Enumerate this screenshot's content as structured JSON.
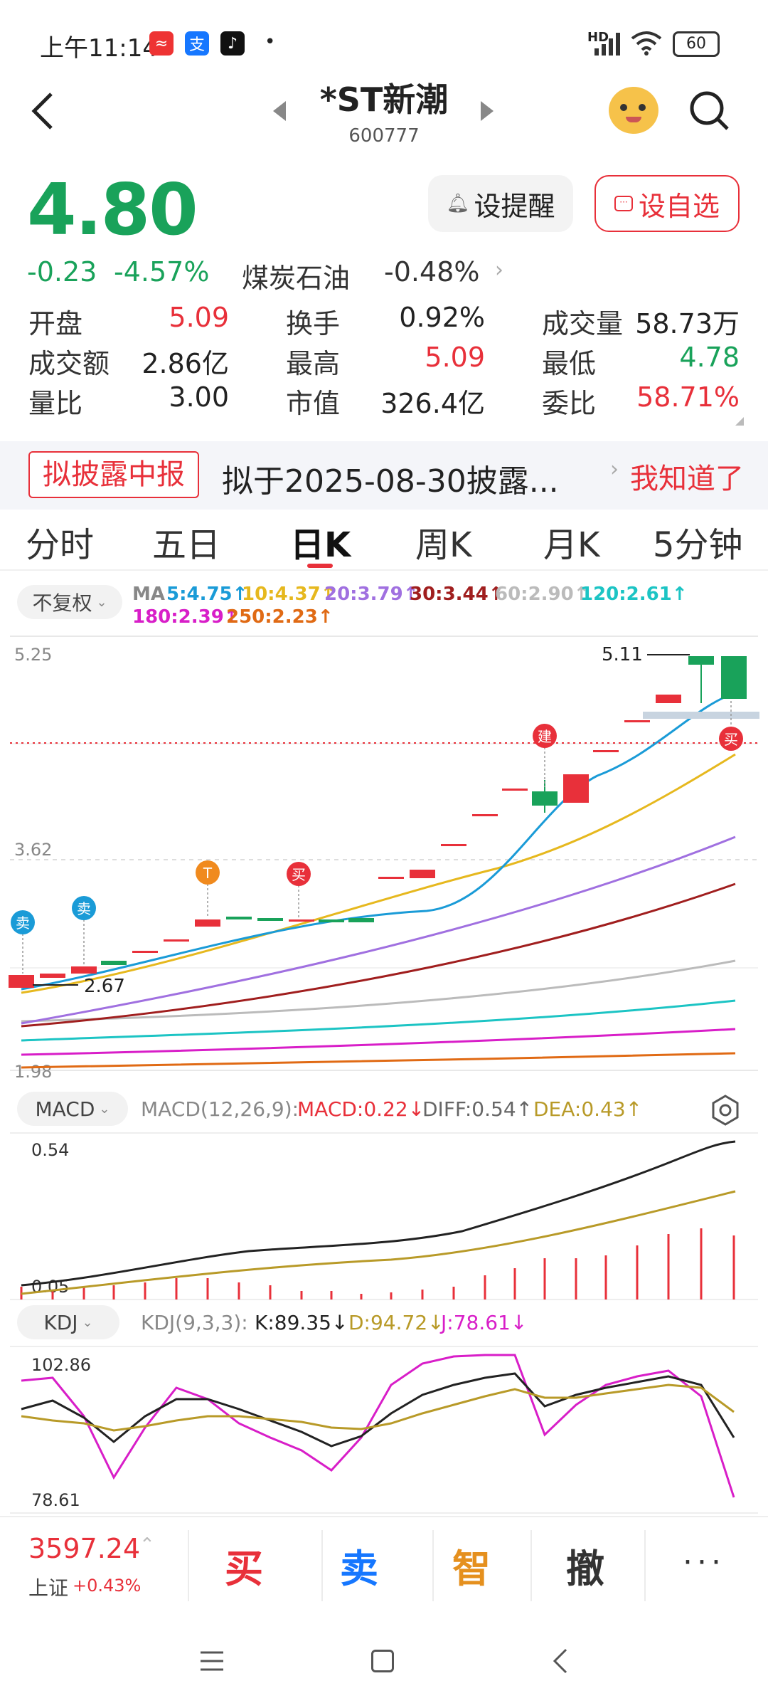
{
  "status_bar": {
    "time": "上午11:14",
    "battery": "60",
    "network": "HD"
  },
  "header": {
    "title": "*ST新潮",
    "code": "600777"
  },
  "quote": {
    "price": "4.80",
    "change": "-0.23",
    "change_pct": "-4.57%",
    "sector_name": "煤炭石油",
    "sector_change": "-0.48%",
    "alert_button": "设提醒",
    "watchlist_button": "设自选"
  },
  "stats": [
    {
      "label": "开盘",
      "value": "5.09",
      "color": "#e8303a"
    },
    {
      "label": "换手",
      "value": "0.92%",
      "color": "#222222"
    },
    {
      "label": "成交量",
      "value": "58.73万",
      "color": "#222222"
    },
    {
      "label": "成交额",
      "value": "2.86亿",
      "color": "#222222"
    },
    {
      "label": "最高",
      "value": "5.09",
      "color": "#e8303a"
    },
    {
      "label": "最低",
      "value": "4.78",
      "color": "#19a25a"
    },
    {
      "label": "量比",
      "value": "3.00",
      "color": "#222222"
    },
    {
      "label": "市值",
      "value": "326.4亿",
      "color": "#222222"
    },
    {
      "label": "委比",
      "value": "58.71%",
      "color": "#e8303a"
    }
  ],
  "banner": {
    "tag": "拟披露中报",
    "text": "拟于2025-08-30披露...",
    "action": "我知道了"
  },
  "tabs": [
    "分时",
    "五日",
    "日K",
    "周K",
    "月K",
    "5分钟"
  ],
  "active_tab_index": 2,
  "chart": {
    "adjust_select": "不复权",
    "ma_label": "MA",
    "ma_items": [
      {
        "text": "5:4.75↑",
        "color": "#1a9bd7"
      },
      {
        "text": "10:4.37↑",
        "color": "#e6b81e"
      },
      {
        "text": "20:3.79↑",
        "color": "#a070e0"
      },
      {
        "text": "30:3.44↑",
        "color": "#a01e1e"
      },
      {
        "text": "60:2.90↑",
        "color": "#bbbbbb"
      },
      {
        "text": "120:2.61↑",
        "color": "#1cc4c4"
      },
      {
        "text": "180:2.39↑",
        "color": "#d81ec8"
      },
      {
        "text": "250:2.23↑",
        "color": "#e06a14"
      }
    ],
    "y_top": "5.25",
    "y_mid": "3.62",
    "y_bottom": "1.98",
    "high_label": "5.11",
    "low_label": "2.67",
    "markers": {
      "sell1": "卖",
      "sell2": "卖",
      "t": "T",
      "buy1": "买",
      "build": "建",
      "buy2": "买"
    }
  },
  "macd": {
    "select": "MACD",
    "params": "MACD(12,26,9):",
    "macd": "MACD:0.22↓",
    "diff": "DIFF:0.54↑",
    "dea": "DEA:0.43↑",
    "y_top": "0.54",
    "y_bottom": "0.05"
  },
  "kdj": {
    "select": "KDJ",
    "params": "KDJ(9,3,3):",
    "k": "K:89.35↓",
    "d": "D:94.72↓",
    "j": "J:78.61↓",
    "y_top": "102.86",
    "y_bottom": "78.61"
  },
  "bottom": {
    "index_value": "3597.24",
    "index_name": "上证",
    "index_change": "+0.43%",
    "buy": "买",
    "sell": "卖",
    "smart": "智",
    "cancel": "撤"
  }
}
